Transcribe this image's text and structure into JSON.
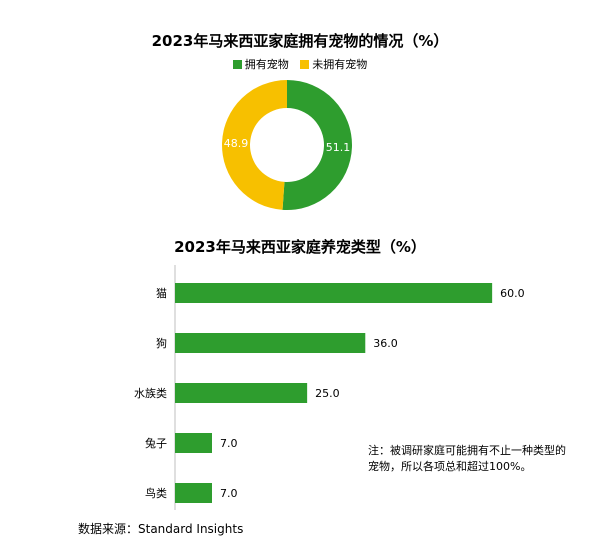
{
  "chart_data": [
    {
      "type": "pie",
      "title": "2023年马来西亚家庭拥有宠物的情况（%）",
      "legend": [
        "拥有宠物",
        "未拥有宠物"
      ],
      "legend_position": "top",
      "categories": [
        "拥有宠物",
        "未拥有宠物"
      ],
      "values": [
        51.1,
        48.9
      ],
      "value_labels": [
        "51.1",
        "48.9"
      ],
      "colors": [
        "#2e9d2e",
        "#f7c000"
      ]
    },
    {
      "type": "bar",
      "orientation": "horizontal",
      "title": "2023年马来西亚家庭养宠类型（%）",
      "categories": [
        "猫",
        "狗",
        "水族类",
        "兔子",
        "鸟类"
      ],
      "values": [
        60.0,
        36.0,
        25.0,
        7.0,
        7.0
      ],
      "value_labels": [
        "60.0",
        "36.0",
        "25.0",
        "7.0",
        "7.0"
      ],
      "xlim": [
        0,
        70
      ],
      "color": "#2e9d2e"
    }
  ],
  "note": "注：被调研家庭可能拥有不止一种类型的宠物，所以各项总和超过100%。",
  "source": "数据来源：Standard Insights"
}
